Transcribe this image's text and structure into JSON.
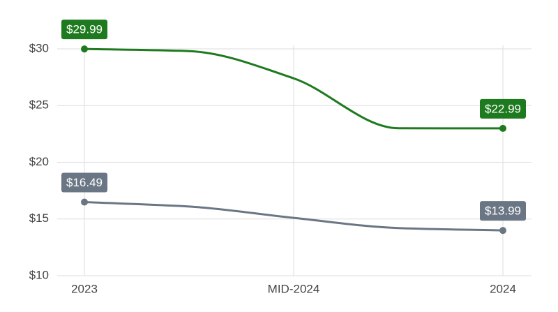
{
  "chart_data": {
    "type": "line",
    "categories": [
      "2023",
      null,
      "MID-2024",
      null,
      "2024"
    ],
    "series": [
      {
        "color": "#1e7a1e",
        "values": [
          29.99,
          29.8,
          27.4,
          23.0,
          22.99
        ],
        "value_labels": [
          "$29.99",
          null,
          null,
          null,
          "$22.99"
        ]
      },
      {
        "color": "#6b7685",
        "values": [
          16.49,
          16.1,
          15.1,
          14.2,
          13.99
        ],
        "value_labels": [
          "$16.49",
          null,
          null,
          null,
          "$13.99"
        ]
      }
    ],
    "ylim": [
      10,
      30
    ],
    "yticks": [
      {
        "value": 10,
        "label": "$10"
      },
      {
        "value": 15,
        "label": "$15"
      },
      {
        "value": 20,
        "label": "$20"
      },
      {
        "value": 25,
        "label": "$25"
      },
      {
        "value": 30,
        "label": "$30"
      }
    ],
    "grid": true
  }
}
